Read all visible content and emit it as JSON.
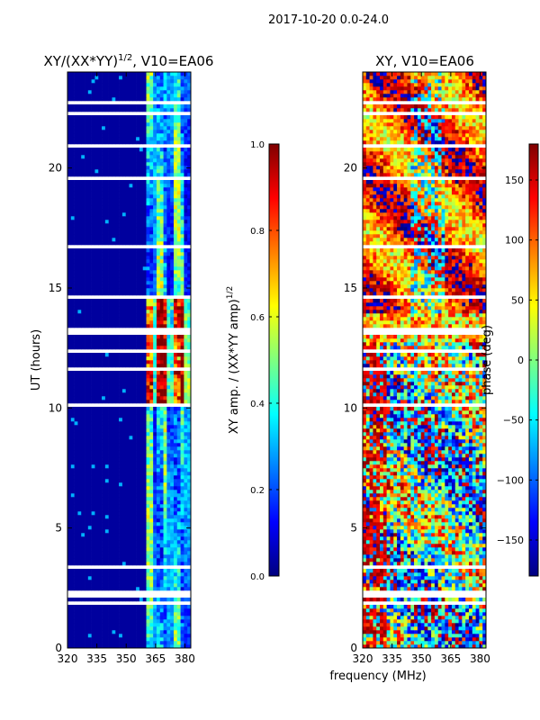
{
  "figure": {
    "suptitle": "2017-10-20 0.0-24.0",
    "xlabel_shared": "frequency (MHz)",
    "colors": {
      "jet": [
        "#00007f",
        "#0000ff",
        "#007fff",
        "#00ffff",
        "#7fff7f",
        "#ffff00",
        "#ff7f00",
        "#ff0000",
        "#7f0000"
      ]
    }
  },
  "chart_data": [
    {
      "type": "heatmap",
      "title_main": "XY/(XX*YY)",
      "title_sup": "1/2",
      "title_rest": ", V10=EA06",
      "xlabel": "",
      "ylabel": "UT (hours)",
      "xlim": [
        320,
        383
      ],
      "ylim": [
        0,
        24
      ],
      "xticks": [
        320,
        335,
        350,
        365,
        380
      ],
      "xtick_labels": [
        "320",
        "335",
        "350",
        "365",
        "380"
      ],
      "yticks": [
        0,
        5,
        10,
        15,
        20
      ],
      "ytick_labels": [
        "0",
        "5",
        "10",
        "15",
        "20"
      ],
      "colorbar": {
        "label_main": "XY amp. / (XX*YY amp)",
        "label_sup": "1/2",
        "range": [
          0,
          1
        ],
        "ticks": [
          0.0,
          0.2,
          0.4,
          0.6,
          0.8,
          1.0
        ],
        "tick_labels": [
          "0.0",
          "0.2",
          "0.4",
          "0.6",
          "0.8",
          "1.0"
        ]
      },
      "notes": "Mostly low amplitude (~0) below 360 MHz; bright bands 360-383 MHz with values 0.5-1.0 around 10-14.5 UT; many flagged (blank) time rows."
    },
    {
      "type": "heatmap",
      "title_main": "XY, V10=EA06",
      "xlabel": "frequency (MHz)",
      "ylabel": "",
      "xlim": [
        320,
        383
      ],
      "ylim": [
        0,
        24
      ],
      "xticks": [
        320,
        335,
        350,
        365,
        380
      ],
      "xtick_labels": [
        "320",
        "335",
        "350",
        "365",
        "380"
      ],
      "yticks": [
        0,
        5,
        10,
        15,
        20
      ],
      "ytick_labels": [
        "0",
        "5",
        "10",
        "15",
        "20"
      ],
      "colorbar": {
        "label_main": "phase (deg)",
        "range": [
          -180,
          180
        ],
        "ticks": [
          -150,
          -100,
          -50,
          0,
          50,
          100,
          150
        ],
        "tick_labels": [
          "−150",
          "−100",
          "−50",
          "0",
          "50",
          "100",
          "150"
        ]
      },
      "notes": "Phase noisy across band; mostly positive phases (50-180 deg) 14-24 UT, mixed and noisy below 13 UT; many flagged rows."
    }
  ]
}
